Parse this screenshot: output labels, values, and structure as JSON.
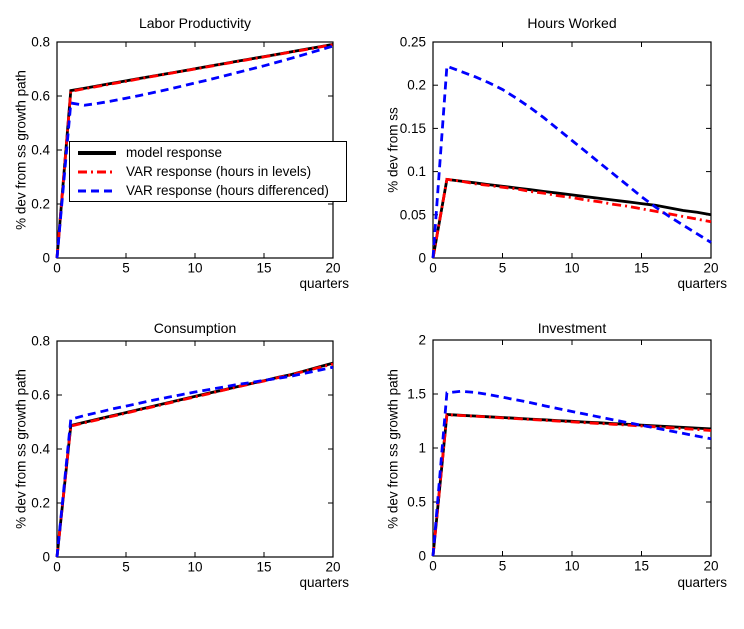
{
  "figure": {
    "background_color": "#ffffff",
    "axes_color": "#000000",
    "series_colors": {
      "model": "#000000",
      "var_levels": "#ff0000",
      "var_differenced": "#0000ff"
    }
  },
  "chart_data": [
    {
      "type": "line",
      "title": "Labor Productivity",
      "xlabel": "quarters",
      "ylabel": "% dev from ss growth path",
      "xlim": [
        0,
        20
      ],
      "ylim": [
        0,
        0.8
      ],
      "xticks": [
        0,
        5,
        10,
        15,
        20
      ],
      "yticks": [
        0,
        0.2,
        0.4,
        0.6,
        0.8
      ],
      "grid": false,
      "legend_visible": true,
      "legend_position": "inside middle-left",
      "x": [
        0,
        1,
        2,
        3,
        4,
        5,
        6,
        7,
        8,
        9,
        10,
        11,
        12,
        13,
        14,
        15,
        16,
        17,
        18,
        19,
        20
      ],
      "series": [
        {
          "name": "model response",
          "color": "#000000",
          "style": "solid",
          "values": [
            0,
            0.62,
            0.629,
            0.638,
            0.647,
            0.656,
            0.665,
            0.674,
            0.683,
            0.692,
            0.701,
            0.71,
            0.719,
            0.728,
            0.737,
            0.746,
            0.755,
            0.764,
            0.773,
            0.782,
            0.791
          ]
        },
        {
          "name": "VAR response (hours in levels)",
          "color": "#ff0000",
          "style": "dashdot",
          "values": [
            0,
            0.617,
            0.627,
            0.636,
            0.645,
            0.654,
            0.664,
            0.673,
            0.682,
            0.691,
            0.7,
            0.709,
            0.718,
            0.727,
            0.736,
            0.745,
            0.754,
            0.763,
            0.772,
            0.781,
            0.79
          ]
        },
        {
          "name": "VAR response (hours differenced)",
          "color": "#0000ff",
          "style": "dashed",
          "values": [
            0,
            0.574,
            0.566,
            0.573,
            0.582,
            0.592,
            0.602,
            0.613,
            0.624,
            0.636,
            0.648,
            0.66,
            0.673,
            0.686,
            0.699,
            0.712,
            0.726,
            0.74,
            0.755,
            0.77,
            0.785
          ]
        }
      ]
    },
    {
      "type": "line",
      "title": "Hours Worked",
      "xlabel": "quarters",
      "ylabel": "% dev from ss",
      "xlim": [
        0,
        20
      ],
      "ylim": [
        0,
        0.25
      ],
      "xticks": [
        0,
        5,
        10,
        15,
        20
      ],
      "yticks": [
        0,
        0.05,
        0.1,
        0.15,
        0.2,
        0.25
      ],
      "grid": false,
      "legend_visible": false,
      "x": [
        0,
        1,
        2,
        3,
        4,
        5,
        6,
        7,
        8,
        9,
        10,
        11,
        12,
        13,
        14,
        15,
        16,
        17,
        18,
        19,
        20
      ],
      "series": [
        {
          "name": "model response",
          "color": "#000000",
          "style": "solid",
          "values": [
            0,
            0.091,
            0.089,
            0.087,
            0.085,
            0.083,
            0.081,
            0.079,
            0.077,
            0.075,
            0.073,
            0.071,
            0.069,
            0.067,
            0.065,
            0.063,
            0.061,
            0.058,
            0.055,
            0.053,
            0.05
          ]
        },
        {
          "name": "VAR response (hours in levels)",
          "color": "#ff0000",
          "style": "dashdot",
          "values": [
            0,
            0.091,
            0.089,
            0.086,
            0.084,
            0.082,
            0.08,
            0.077,
            0.075,
            0.072,
            0.07,
            0.067,
            0.065,
            0.062,
            0.06,
            0.057,
            0.054,
            0.051,
            0.048,
            0.045,
            0.042
          ]
        },
        {
          "name": "VAR response (hours differenced)",
          "color": "#0000ff",
          "style": "dashed",
          "values": [
            0,
            0.222,
            0.216,
            0.21,
            0.203,
            0.195,
            0.185,
            0.174,
            0.162,
            0.149,
            0.136,
            0.123,
            0.11,
            0.097,
            0.084,
            0.071,
            0.059,
            0.048,
            0.038,
            0.028,
            0.018
          ]
        }
      ]
    },
    {
      "type": "line",
      "title": "Consumption",
      "xlabel": "quarters",
      "ylabel": "% dev from ss growth path",
      "xlim": [
        0,
        20
      ],
      "ylim": [
        0,
        0.8
      ],
      "xticks": [
        0,
        5,
        10,
        15,
        20
      ],
      "yticks": [
        0,
        0.2,
        0.4,
        0.6,
        0.8
      ],
      "grid": false,
      "legend_visible": false,
      "x": [
        0,
        1,
        2,
        3,
        4,
        5,
        6,
        7,
        8,
        9,
        10,
        11,
        12,
        13,
        14,
        15,
        16,
        17,
        18,
        19,
        20
      ],
      "series": [
        {
          "name": "model response",
          "color": "#000000",
          "style": "solid",
          "values": [
            0,
            0.487,
            0.499,
            0.511,
            0.523,
            0.535,
            0.547,
            0.559,
            0.571,
            0.583,
            0.595,
            0.607,
            0.618,
            0.63,
            0.642,
            0.653,
            0.665,
            0.676,
            0.69,
            0.704,
            0.718
          ]
        },
        {
          "name": "VAR response (hours in levels)",
          "color": "#ff0000",
          "style": "dashdot",
          "values": [
            0,
            0.485,
            0.497,
            0.509,
            0.521,
            0.533,
            0.545,
            0.557,
            0.569,
            0.581,
            0.593,
            0.605,
            0.617,
            0.629,
            0.641,
            0.652,
            0.664,
            0.675,
            0.689,
            0.702,
            0.715
          ]
        },
        {
          "name": "VAR response (hours differenced)",
          "color": "#0000ff",
          "style": "dashed",
          "values": [
            0,
            0.51,
            0.524,
            0.536,
            0.548,
            0.559,
            0.57,
            0.581,
            0.591,
            0.601,
            0.611,
            0.62,
            0.629,
            0.638,
            0.646,
            0.654,
            0.662,
            0.67,
            0.681,
            0.692,
            0.703
          ]
        }
      ]
    },
    {
      "type": "line",
      "title": "Investment",
      "xlabel": "quarters",
      "ylabel": "% dev from ss growth path",
      "xlim": [
        0,
        20
      ],
      "ylim": [
        0,
        2
      ],
      "xticks": [
        0,
        5,
        10,
        15,
        20
      ],
      "yticks": [
        0,
        0.5,
        1,
        1.5,
        2
      ],
      "grid": false,
      "legend_visible": false,
      "x": [
        0,
        1,
        2,
        3,
        4,
        5,
        6,
        7,
        8,
        9,
        10,
        11,
        12,
        13,
        14,
        15,
        16,
        17,
        18,
        19,
        20
      ],
      "series": [
        {
          "name": "model response",
          "color": "#000000",
          "style": "solid",
          "values": [
            0,
            1.31,
            1.303,
            1.296,
            1.289,
            1.282,
            1.275,
            1.268,
            1.261,
            1.254,
            1.247,
            1.24,
            1.233,
            1.226,
            1.219,
            1.212,
            1.205,
            1.198,
            1.191,
            1.184,
            1.177
          ]
        },
        {
          "name": "VAR response (hours in levels)",
          "color": "#ff0000",
          "style": "dashdot",
          "values": [
            0,
            1.308,
            1.301,
            1.294,
            1.287,
            1.279,
            1.272,
            1.264,
            1.257,
            1.249,
            1.242,
            1.234,
            1.227,
            1.219,
            1.212,
            1.204,
            1.196,
            1.188,
            1.18,
            1.171,
            1.162
          ]
        },
        {
          "name": "VAR response (hours differenced)",
          "color": "#0000ff",
          "style": "dashed",
          "values": [
            0,
            1.51,
            1.525,
            1.515,
            1.495,
            1.47,
            1.445,
            1.42,
            1.392,
            1.365,
            1.338,
            1.312,
            1.286,
            1.26,
            1.235,
            1.21,
            1.185,
            1.16,
            1.135,
            1.11,
            1.085
          ]
        }
      ]
    }
  ]
}
